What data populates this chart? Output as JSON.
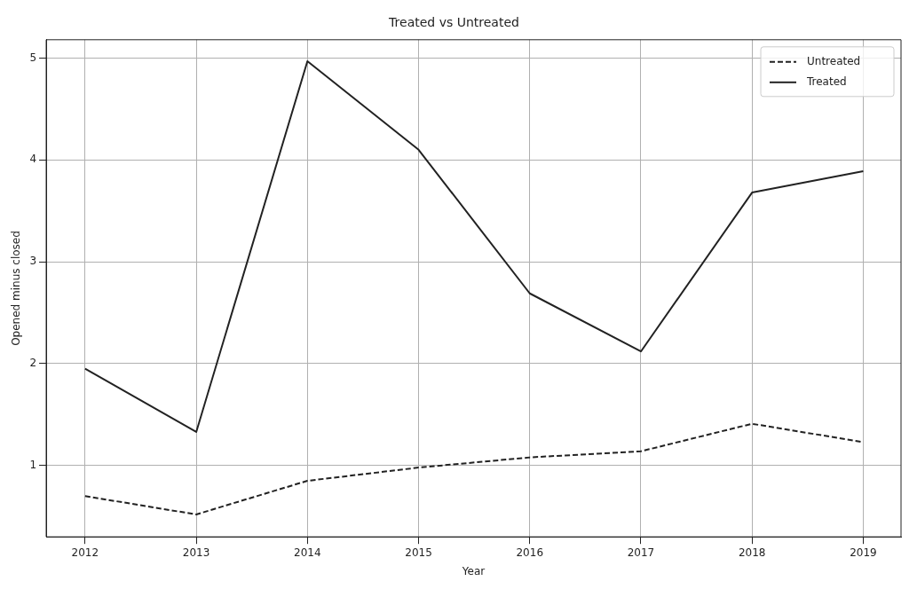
{
  "chart_data": {
    "type": "line",
    "title": "Treated vs Untreated",
    "xlabel": "Year",
    "ylabel": "Opened minus closed",
    "x": [
      2012,
      2013,
      2014,
      2015,
      2016,
      2017,
      2018,
      2019
    ],
    "series": [
      {
        "name": "Untreated",
        "color": "#222222",
        "line_style": "dashed",
        "values": [
          0.7,
          0.52,
          0.85,
          0.98,
          1.08,
          1.14,
          1.41,
          1.23
        ]
      },
      {
        "name": "Treated",
        "color": "#222222",
        "line_style": "solid",
        "values": [
          1.95,
          1.33,
          4.97,
          4.1,
          2.69,
          2.12,
          3.68,
          3.89
        ]
      }
    ],
    "xlim": [
      2011.65,
      2019.34
    ],
    "xticks": [
      2012,
      2013,
      2014,
      2015,
      2016,
      2017,
      2018,
      2019
    ],
    "ylim": [
      0.3,
      5.18
    ],
    "yticks": [
      1,
      2,
      3,
      4,
      5
    ],
    "grid": true,
    "legend": "top right",
    "marker": "none"
  }
}
